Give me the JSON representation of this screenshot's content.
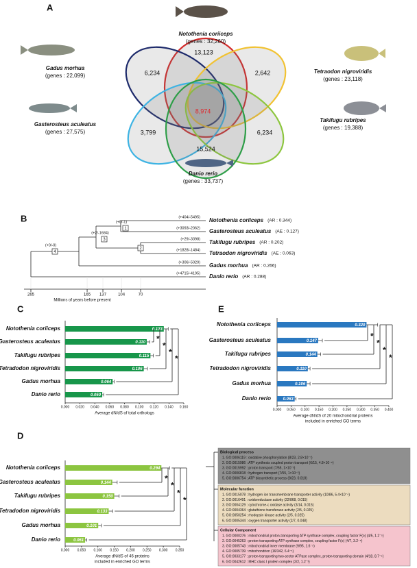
{
  "venn": {
    "label": "A",
    "species": [
      {
        "name": "Notothenia coriiceps",
        "genes": "(genes : 32,260)"
      },
      {
        "name": "Gadus morhua",
        "genes": "(genes : 22,099)"
      },
      {
        "name": "Tetraodon nigroviridis",
        "genes": "(genes : 23,118)"
      },
      {
        "name": "Gasterosteus aculeatus",
        "genes": "(genes : 27,575)"
      },
      {
        "name": "Takifugu rubripes",
        "genes": "(genes : 19,388)"
      },
      {
        "name": "Danio rerio",
        "genes": "(genes : 33,737)"
      }
    ],
    "counts": [
      "13,123",
      "6,234",
      "2,642",
      "8,974",
      "3,799",
      "6,234",
      "15,524"
    ]
  },
  "tree": {
    "label": "B",
    "species": [
      {
        "name": "Notothenia coriiceps",
        "ratio": "(AR : 0.344)",
        "branch": "(+404/-5495)"
      },
      {
        "name": "Gasterosteus aculeatus",
        "ratio": "(AE : 0.127)",
        "branch": "(+3093/-2062)"
      },
      {
        "name": "Takifugu rubripes",
        "ratio": "(AR : 0.202)",
        "branch": "(+29/-3398)"
      },
      {
        "name": "Tetraodon nigroviridis",
        "ratio": "(AE : 0.063)",
        "branch": "(+1828/-1484)"
      },
      {
        "name": "Gadus morhua",
        "ratio": "(AR : 0.266)",
        "branch": "(+306/-5020)"
      },
      {
        "name": "Danio rerio",
        "ratio": "(AR : 0.288)",
        "branch": "(+4715/-4195)"
      }
    ],
    "nodes": [
      {
        "id": "1",
        "change": "(+0/-1)"
      },
      {
        "id": "2"
      },
      {
        "id": "3",
        "change": "(+2/-1684)"
      },
      {
        "id": "4",
        "change": "(+0/-0)"
      }
    ],
    "xticks": [
      265,
      165,
      137,
      104,
      70
    ],
    "xlabel": "Millions of years before present"
  },
  "chart_data": [
    {
      "type": "bar",
      "label": "C",
      "categories": [
        "Notothenia coriiceps",
        "Gasterosteus aculeatus",
        "Takifugu rubripes",
        "Tetradodon nigroviridis",
        "Gadus morhua",
        "Danio rerio"
      ],
      "values": [
        0.133,
        0.11,
        0.115,
        0.106,
        0.064,
        0.05
      ],
      "value_labels": [
        "0.133",
        "0.110",
        "0.115",
        "0.106",
        "0.064",
        "0.050"
      ],
      "errors": [
        0.006,
        0.004,
        0.004,
        0.005,
        0.002,
        0.002
      ],
      "color": "#17964a",
      "xlim": [
        0,
        0.16
      ],
      "xticks": [
        {
          "value": 0,
          "label": "0.000"
        },
        {
          "value": 0.02,
          "label": "0.020"
        },
        {
          "value": 0.04,
          "label": "0.040"
        },
        {
          "value": 0.06,
          "label": "0.060"
        },
        {
          "value": 0.08,
          "label": "0.080"
        },
        {
          "value": 0.1,
          "label": "0.100"
        },
        {
          "value": 0.12,
          "label": "0.120"
        },
        {
          "value": 0.14,
          "label": "0.140"
        },
        {
          "value": 0.16,
          "label": "0.160"
        }
      ],
      "xlabel": [
        "Average dN/dS of total orthologs"
      ],
      "annotations": [
        "*",
        "*",
        "*",
        "*"
      ]
    },
    {
      "type": "bar",
      "label": "E",
      "categories": [
        "Notothenia coriiceps",
        "Gasterosteus aculeatus",
        "Takifugu rubripes",
        "Tetradodon nigroviridis",
        "Gadus morhua",
        "Danio rerio"
      ],
      "values": [
        0.32,
        0.147,
        0.144,
        0.11,
        0.106,
        0.063
      ],
      "value_labels": [
        "0.320",
        "0.147",
        "0.144",
        "0.110",
        "0.106",
        "0.063"
      ],
      "errors": [
        0.04,
        0.015,
        0.012,
        0.008,
        0.012,
        0.005
      ],
      "color": "#2a78c0",
      "xlim": [
        0,
        0.4
      ],
      "xticks": [
        {
          "value": 0,
          "label": "0.000"
        },
        {
          "value": 0.05,
          "label": "0.050"
        },
        {
          "value": 0.1,
          "label": "0.100"
        },
        {
          "value": 0.15,
          "label": "0.150"
        },
        {
          "value": 0.2,
          "label": "0.200"
        },
        {
          "value": 0.25,
          "label": "0.250"
        },
        {
          "value": 0.3,
          "label": "0.300"
        },
        {
          "value": 0.35,
          "label": "0.350"
        },
        {
          "value": 0.4,
          "label": "0.400"
        }
      ],
      "xlabel": [
        "Average dN/dS of 20 mitochondrial proteins",
        "included in enriched GO terms"
      ],
      "annotations": [
        "*",
        "*",
        "*",
        "*"
      ]
    },
    {
      "type": "bar",
      "label": "D",
      "categories": [
        "Notothenia coriiceps",
        "Gasterosteus aculeatus",
        "Takifugu rubripes",
        "Tetradodon nigroviridis",
        "Gadus morhua",
        "Danio rerio"
      ],
      "values": [
        0.294,
        0.144,
        0.15,
        0.133,
        0.101,
        0.061
      ],
      "value_labels": [
        "0.294",
        "0.144",
        "0.150",
        "0.133",
        "0.101",
        "0.061"
      ],
      "errors": [
        0.025,
        0.015,
        0.015,
        0.012,
        0.01,
        0.005
      ],
      "color": "#8cc540",
      "xlim": [
        0,
        0.35
      ],
      "xticks": [
        {
          "value": 0,
          "label": "0.000"
        },
        {
          "value": 0.05,
          "label": "0.050"
        },
        {
          "value": 0.1,
          "label": "0.100"
        },
        {
          "value": 0.15,
          "label": "0.150"
        },
        {
          "value": 0.2,
          "label": "0.200"
        },
        {
          "value": 0.25,
          "label": "0.250"
        },
        {
          "value": 0.3,
          "label": "0.300"
        },
        {
          "value": 0.35,
          "label": "0.350"
        }
      ],
      "xlabel": [
        "Average dN/dS of 46 proteins",
        "included in enriched GO terms"
      ],
      "annotations": [
        "*",
        "*",
        "*",
        "*"
      ]
    }
  ],
  "go_terms": [
    {
      "title": "Biological process",
      "items": [
        "1. GO:0006119 : oxidative phosphorylation (8/23, 2.8×10⁻⁷)",
        "2. GO:0015986 : ATP synthesis coupled proton transport (6/15, 4.8×10⁻⁶)",
        "3. GO:0015992 : proton transport (7/55, 1×10⁻³)",
        "4. GO:0006818 : hydrogen transport (7/55, 1×10⁻³)",
        "5. GO:0006754 : ATP biosynthetic process (8/23, 0.018)"
      ]
    },
    {
      "title": "Molecular function",
      "items": [
        "1. GO:0015078 : hydrogen ion transmembrane transporter activity (10/86, 5.4×10⁻⁶)",
        "2. GO:0016491 : oxidoreductase activity (22/868, 0.015)",
        "3. GO:0004129 : cytochrome-c oxidase activity (3/14, 0.015)",
        "4. GO:0004364 : glutathione transferase activity (2/5, 0.025)",
        "5. GO:0050254 : rhodopsin kinase activity (2/5, 0.025)",
        "6. GO:0005344 : oxygen transporter activity (2/7, 0.048)"
      ]
    },
    {
      "title": "Cellular Component",
      "items": [
        "1. GO:0000276 : mitochondrial proton-transporting ATP synthase complex, coupling factor F(o) (4/5, 1.2⁻⁵)",
        "2. GO:0045263 : proton-transporting ATP synthase complex, coupling factor F(o) (4/7, 3.2⁻⁵)",
        "3. GO:0005743 : mitochondrial inner membrane (9/95, 1.6⁻⁵)",
        "4. GO:0005739 : mitochondrion (16/342, 6.4⁻⁵)",
        "5. GO:0033177 : proton-transporting two-sector ATPase complex, proton-transporting domain (4/18, 8.7⁻⁵)",
        "6. GO:0042612 : MHC class I protein complex (2/2, 1.2⁻³)"
      ]
    }
  ]
}
